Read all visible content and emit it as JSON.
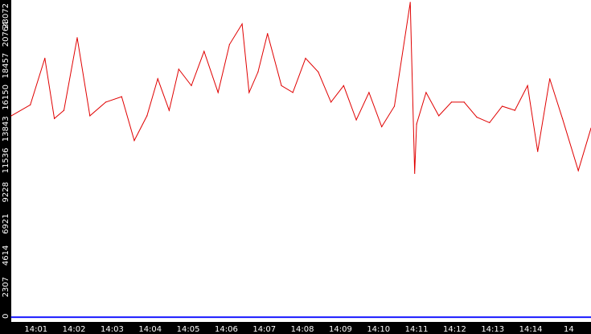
{
  "chart_data": {
    "type": "line",
    "title": "",
    "xlabel": "",
    "ylabel": "",
    "ylim": [
      0,
      23072
    ],
    "y_ticks": [
      "0",
      "2307",
      "4614",
      "6921",
      "9228",
      "11536",
      "13843",
      "16150",
      "18457",
      "20764",
      "23072"
    ],
    "x_ticks": [
      "14:01",
      "14:02",
      "14:03",
      "14:04",
      "14:05",
      "14:06",
      "14:07",
      "14:08",
      "14:09",
      "14:10",
      "14:11",
      "14:12",
      "14:13",
      "14:14",
      "14"
    ],
    "xlim": [
      "14:00:21",
      "14:15:35"
    ],
    "grid": false,
    "legend": "none",
    "colors": {
      "background": "#ffffff",
      "axis_bars": "#000000",
      "tick_text": "#ffffff",
      "series_red": "#e00000",
      "series_blue": "#1a1aff"
    },
    "series": [
      {
        "color": "#e00000",
        "x": [
          "14:00:21",
          "14:00:51",
          "14:01:14",
          "14:01:29",
          "14:01:44",
          "14:02:05",
          "14:02:25",
          "14:02:50",
          "14:03:15",
          "14:03:35",
          "14:03:55",
          "14:04:12",
          "14:04:30",
          "14:04:45",
          "14:05:05",
          "14:05:25",
          "14:05:47",
          "14:06:05",
          "14:06:25",
          "14:06:36",
          "14:06:50",
          "14:07:05",
          "14:07:27",
          "14:07:45",
          "14:08:05",
          "14:08:25",
          "14:08:45",
          "14:09:05",
          "14:09:25",
          "14:09:45",
          "14:10:05",
          "14:10:25",
          "14:10:50",
          "14:10:57",
          "14:11:00",
          "14:11:15",
          "14:11:35",
          "14:11:55",
          "14:12:15",
          "14:12:35",
          "14:12:55",
          "14:13:15",
          "14:13:35",
          "14:13:55",
          "14:14:11",
          "14:14:30",
          "14:14:50",
          "14:15:15",
          "14:15:35"
        ],
        "y": [
          14800,
          15600,
          19000,
          14600,
          15200,
          20500,
          14800,
          15800,
          16200,
          13000,
          14800,
          17500,
          15200,
          18200,
          17000,
          19500,
          16500,
          20000,
          21500,
          16500,
          18000,
          20800,
          17000,
          16500,
          19000,
          18000,
          15800,
          17000,
          14500,
          16500,
          14000,
          15500,
          23072,
          10600,
          14200,
          16500,
          14800,
          15800,
          15800,
          14700,
          14300,
          15500,
          15200,
          17000,
          12200,
          17500,
          14600,
          10800,
          13900
        ]
      },
      {
        "color": "#1a1aff",
        "x": [
          "14:00:21",
          "14:15:35"
        ],
        "y": [
          110,
          110
        ]
      }
    ]
  }
}
